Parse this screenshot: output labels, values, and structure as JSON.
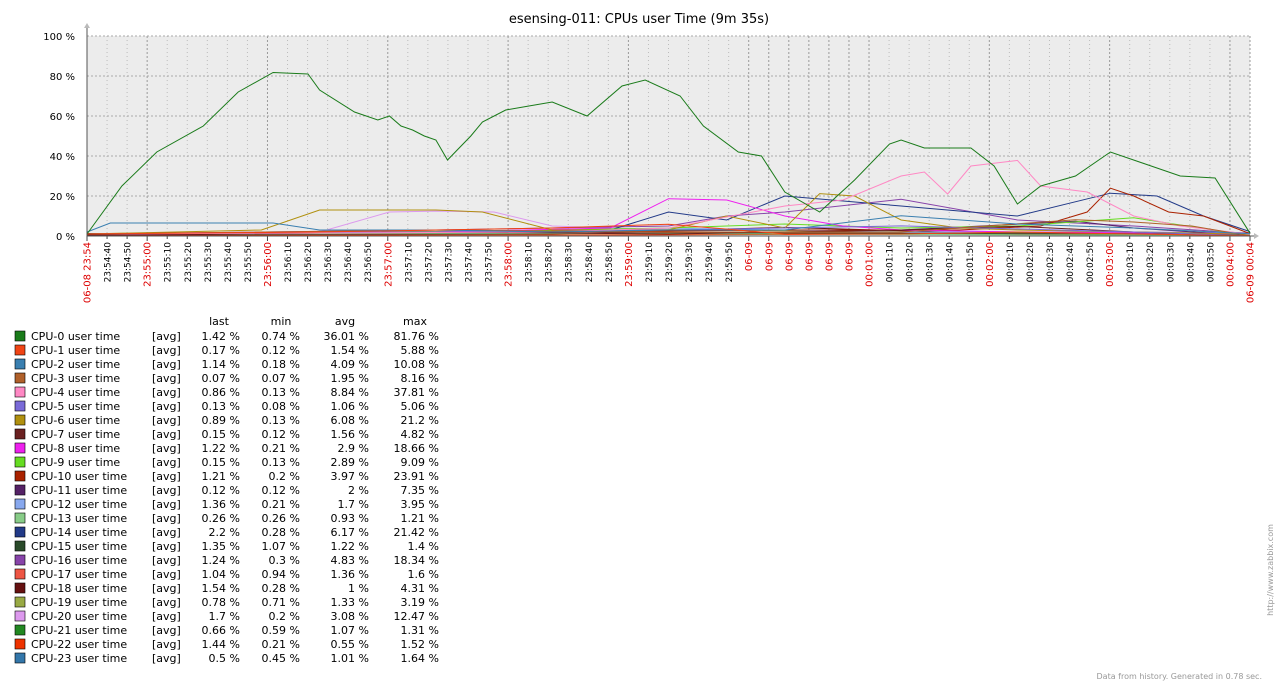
{
  "chart_data": {
    "type": "line",
    "title": "esensing-011: CPUs user Time (9m 35s)",
    "y_unit": "%",
    "ylim": [
      0,
      100
    ],
    "yticks": [
      "0 %",
      "20 %",
      "40 %",
      "60 %",
      "80 %",
      "100 %"
    ],
    "x_start": "06-08 23:54",
    "x_end": "06-09 00:04",
    "xticks": [
      "23:54:40",
      "23:54:50",
      "23:55:00",
      "23:55:10",
      "23:55:20",
      "23:55:30",
      "23:55:40",
      "23:55:50",
      "23:56:00",
      "23:56:10",
      "23:56:20",
      "23:56:30",
      "23:56:40",
      "23:56:50",
      "23:57:00",
      "23:57:10",
      "23:57:20",
      "23:57:30",
      "23:57:40",
      "23:57:50",
      "23:58:00",
      "23:58:10",
      "23:58:20",
      "23:58:30",
      "23:58:40",
      "23:58:50",
      "23:59:00",
      "23:59:10",
      "23:59:20",
      "23:59:30",
      "23:59:40",
      "23:59:50",
      "06-09",
      "06-09",
      "06-09",
      "06-09",
      "06-09",
      "06-09",
      "00:01:00",
      "00:01:10",
      "00:01:20",
      "00:01:30",
      "00:01:40",
      "00:01:50",
      "00:02:00",
      "00:02:10",
      "00:02:20",
      "00:02:30",
      "00:02:40",
      "00:02:50",
      "00:03:00",
      "00:03:10",
      "00:03:20",
      "00:03:30",
      "00:03:40",
      "00:03:50",
      "00:04:00"
    ],
    "major_xticks": [
      "23:55:00",
      "23:56:00",
      "23:57:00",
      "23:58:00",
      "23:59:00",
      "06-09",
      "00:01:00",
      "00:02:00",
      "00:03:00",
      "00:04:00"
    ],
    "grid": true,
    "legend_headers": [
      "last",
      "min",
      "avg",
      "max"
    ],
    "series": [
      {
        "name": "CPU-0 user time",
        "func": "[avg]",
        "color": "#1a7b1a",
        "last": "1.42 %",
        "min": "0.74 %",
        "avg": "36.01 %",
        "max": "81.76 %",
        "x": [
          0,
          0.03,
          0.06,
          0.1,
          0.13,
          0.16,
          0.19,
          0.2,
          0.23,
          0.25,
          0.26,
          0.27,
          0.28,
          0.29,
          0.3,
          0.31,
          0.33,
          0.34,
          0.36,
          0.38,
          0.4,
          0.43,
          0.46,
          0.48,
          0.51,
          0.53,
          0.56,
          0.58,
          0.6,
          0.63,
          0.66,
          0.69,
          0.7,
          0.72,
          0.74,
          0.76,
          0.78,
          0.8,
          0.82,
          0.85,
          0.88,
          0.91,
          0.94,
          0.97,
          1.0
        ],
        "y": [
          1,
          25,
          42,
          55,
          72,
          81.76,
          81,
          73,
          62,
          58,
          60,
          55,
          53,
          50,
          48,
          38,
          50,
          57,
          63,
          65,
          67,
          60,
          75,
          78,
          70,
          55,
          42,
          40,
          22,
          12,
          28,
          46,
          48,
          44,
          44,
          44,
          35,
          16,
          25,
          30,
          42,
          36,
          30,
          29,
          1.42
        ]
      },
      {
        "name": "CPU-1 user time",
        "func": "[avg]",
        "color": "#f04414",
        "last": "0.17 %",
        "min": "0.12 %",
        "avg": "1.54 %",
        "max": "5.88 %",
        "x": [
          0,
          0.2,
          0.3,
          0.4,
          0.5,
          0.6,
          0.7,
          0.8,
          0.9,
          1.0
        ],
        "y": [
          1,
          2,
          3,
          4,
          5.88,
          1,
          1,
          2,
          1,
          0.17
        ]
      },
      {
        "name": "CPU-2 user time",
        "func": "[avg]",
        "color": "#3a7fb0",
        "last": "1.14 %",
        "min": "0.18 %",
        "avg": "4.09 %",
        "max": "10.08 %",
        "x": [
          0,
          0.02,
          0.1,
          0.16,
          0.2,
          0.3,
          0.4,
          0.5,
          0.6,
          0.7,
          0.8,
          0.9,
          1.0
        ],
        "y": [
          2,
          6.5,
          6.5,
          6.5,
          3,
          3,
          2,
          3,
          3,
          10.08,
          6,
          4,
          1.14
        ]
      },
      {
        "name": "CPU-3 user time",
        "func": "[avg]",
        "color": "#b0602a",
        "last": "0.07 %",
        "min": "0.07 %",
        "avg": "1.95 %",
        "max": "8.16 %",
        "x": [
          0,
          0.3,
          0.5,
          0.7,
          0.85,
          0.9,
          0.95,
          1.0
        ],
        "y": [
          1,
          3,
          2,
          2,
          8.16,
          7,
          5,
          0.07
        ]
      },
      {
        "name": "CPU-4 user time",
        "func": "[avg]",
        "color": "#ff88c4",
        "last": "0.86 %",
        "min": "0.13 %",
        "avg": "8.84 %",
        "max": "37.81 %",
        "x": [
          0,
          0.4,
          0.5,
          0.6,
          0.65,
          0.7,
          0.72,
          0.74,
          0.76,
          0.8,
          0.82,
          0.86,
          0.9,
          0.94,
          1.0
        ],
        "y": [
          1,
          2,
          4,
          15,
          18,
          30,
          32,
          21,
          35,
          37.81,
          25,
          22,
          10,
          5,
          0.86
        ]
      },
      {
        "name": "CPU-5 user time",
        "func": "[avg]",
        "color": "#7a6ad8",
        "last": "0.13 %",
        "min": "0.08 %",
        "avg": "1.06 %",
        "max": "5.06 %",
        "x": [
          0,
          0.3,
          0.5,
          0.7,
          0.9,
          1.0
        ],
        "y": [
          1,
          2,
          3,
          5.06,
          2,
          0.13
        ]
      },
      {
        "name": "CPU-6 user time",
        "func": "[avg]",
        "color": "#b0900e",
        "last": "0.89 %",
        "min": "0.13 %",
        "avg": "6.08 %",
        "max": "21.2 %",
        "x": [
          0,
          0.15,
          0.2,
          0.24,
          0.3,
          0.34,
          0.4,
          0.5,
          0.55,
          0.6,
          0.63,
          0.66,
          0.7,
          0.75,
          0.8,
          0.9,
          1.0
        ],
        "y": [
          1,
          3,
          13,
          13,
          13,
          12,
          3,
          3,
          10,
          4,
          21.2,
          20,
          8,
          4,
          3,
          2,
          0.89
        ]
      },
      {
        "name": "CPU-7 user time",
        "func": "[avg]",
        "color": "#6a2020",
        "last": "0.15 %",
        "min": "0.12 %",
        "avg": "1.56 %",
        "max": "4.82 %",
        "x": [
          0,
          0.3,
          0.5,
          0.7,
          0.8,
          0.9,
          1.0
        ],
        "y": [
          0.5,
          2,
          1,
          3,
          4.82,
          2,
          0.15
        ]
      },
      {
        "name": "CPU-8 user time",
        "func": "[avg]",
        "color": "#ee20ee",
        "last": "1.22 %",
        "min": "0.21 %",
        "avg": "2.9 %",
        "max": "18.66 %",
        "x": [
          0,
          0.3,
          0.45,
          0.5,
          0.55,
          0.6,
          0.65,
          0.7,
          0.8,
          1.0
        ],
        "y": [
          1,
          2,
          4,
          18.66,
          18,
          10,
          5,
          3,
          2,
          1.22
        ]
      },
      {
        "name": "CPU-9 user time",
        "func": "[avg]",
        "color": "#66dd22",
        "last": "0.15 %",
        "min": "0.13 %",
        "avg": "2.89 %",
        "max": "9.09 %",
        "x": [
          0,
          0.3,
          0.5,
          0.6,
          0.7,
          0.8,
          0.9,
          1.0
        ],
        "y": [
          1,
          2,
          4,
          6,
          4,
          5,
          9.09,
          0.15
        ]
      },
      {
        "name": "CPU-10 user time",
        "func": "[avg]",
        "color": "#aa2200",
        "last": "1.21 %",
        "min": "0.2 %",
        "avg": "3.97 %",
        "max": "23.91 %",
        "x": [
          0,
          0.4,
          0.6,
          0.75,
          0.82,
          0.86,
          0.88,
          0.9,
          0.93,
          0.96,
          1.0
        ],
        "y": [
          1,
          2,
          3,
          3,
          5,
          12,
          23.91,
          20,
          12,
          10,
          1.21
        ]
      },
      {
        "name": "CPU-11 user time",
        "func": "[avg]",
        "color": "#552266",
        "last": "0.12 %",
        "min": "0.12 %",
        "avg": "2 %",
        "max": "7.35 %",
        "x": [
          0,
          0.3,
          0.5,
          0.7,
          0.85,
          0.9,
          1.0
        ],
        "y": [
          1,
          2,
          3,
          3,
          7.35,
          4,
          0.12
        ]
      },
      {
        "name": "CPU-12 user time",
        "func": "[avg]",
        "color": "#88a8ee",
        "last": "1.36 %",
        "min": "0.21 %",
        "avg": "1.7 %",
        "max": "3.95 %",
        "x": [
          0,
          0.3,
          0.5,
          0.7,
          0.9,
          1.0
        ],
        "y": [
          1,
          2,
          3.95,
          2,
          2,
          1.36
        ]
      },
      {
        "name": "CPU-13 user time",
        "func": "[avg]",
        "color": "#88cc88",
        "last": "0.26 %",
        "min": "0.26 %",
        "avg": "0.93 %",
        "max": "1.21 %",
        "x": [
          0,
          0.5,
          1.0
        ],
        "y": [
          1,
          1.21,
          0.26
        ]
      },
      {
        "name": "CPU-14 user time",
        "func": "[avg]",
        "color": "#223a88",
        "last": "2.2 %",
        "min": "0.28 %",
        "avg": "6.17 %",
        "max": "21.42 %",
        "x": [
          0,
          0.3,
          0.45,
          0.5,
          0.55,
          0.6,
          0.7,
          0.8,
          0.88,
          0.92,
          0.96,
          1.0
        ],
        "y": [
          1,
          2,
          3,
          12,
          8,
          20,
          15,
          10,
          21.42,
          20,
          10,
          2.2
        ]
      },
      {
        "name": "CPU-15 user time",
        "func": "[avg]",
        "color": "#2a4a2a",
        "last": "1.35 %",
        "min": "1.07 %",
        "avg": "1.22 %",
        "max": "1.4 %",
        "x": [
          0,
          0.5,
          1.0
        ],
        "y": [
          1.2,
          1.4,
          1.35
        ]
      },
      {
        "name": "CPU-16 user time",
        "func": "[avg]",
        "color": "#8844aa",
        "last": "1.24 %",
        "min": "0.3 %",
        "avg": "4.83 %",
        "max": "18.34 %",
        "x": [
          0,
          0.3,
          0.5,
          0.55,
          0.6,
          0.7,
          0.8,
          0.9,
          1.0
        ],
        "y": [
          1,
          3,
          5,
          10,
          12,
          18.34,
          8,
          5,
          1.24
        ]
      },
      {
        "name": "CPU-17 user time",
        "func": "[avg]",
        "color": "#ee5544",
        "last": "1.04 %",
        "min": "0.94 %",
        "avg": "1.36 %",
        "max": "1.6 %",
        "x": [
          0,
          0.5,
          1.0
        ],
        "y": [
          1.2,
          1.6,
          1.04
        ]
      },
      {
        "name": "CPU-18 user time",
        "func": "[avg]",
        "color": "#661111",
        "last": "1.54 %",
        "min": "0.28 %",
        "avg": "1 %",
        "max": "4.31 %",
        "x": [
          0,
          0.4,
          0.6,
          0.8,
          1.0
        ],
        "y": [
          0.5,
          1,
          4.31,
          1,
          1.54
        ]
      },
      {
        "name": "CPU-19 user time",
        "func": "[avg]",
        "color": "#99aa44",
        "last": "0.78 %",
        "min": "0.71 %",
        "avg": "1.33 %",
        "max": "3.19 %",
        "x": [
          0,
          0.5,
          0.8,
          1.0
        ],
        "y": [
          1,
          3.19,
          1.5,
          0.78
        ]
      },
      {
        "name": "CPU-20 user time",
        "func": "[avg]",
        "color": "#dd99ee",
        "last": "1.7 %",
        "min": "0.2 %",
        "avg": "3.08 %",
        "max": "12.47 %",
        "x": [
          0,
          0.2,
          0.26,
          0.3,
          0.35,
          0.4,
          0.5,
          0.7,
          0.8,
          0.9,
          1.0
        ],
        "y": [
          1,
          2,
          12,
          12.47,
          12,
          5,
          3,
          3,
          2,
          2,
          1.7
        ]
      },
      {
        "name": "CPU-21 user time",
        "func": "[avg]",
        "color": "#228822",
        "last": "0.66 %",
        "min": "0.59 %",
        "avg": "1.07 %",
        "max": "1.31 %",
        "x": [
          0,
          0.5,
          1.0
        ],
        "y": [
          1,
          1.31,
          0.66
        ]
      },
      {
        "name": "CPU-22 user time",
        "func": "[avg]",
        "color": "#ee3300",
        "last": "1.44 %",
        "min": "0.21 %",
        "avg": "0.55 %",
        "max": "1.52 %",
        "x": [
          0,
          0.5,
          1.0
        ],
        "y": [
          0.4,
          0.6,
          1.44
        ]
      },
      {
        "name": "CPU-23 user time",
        "func": "[avg]",
        "color": "#3377aa",
        "last": "0.5 %",
        "min": "0.45 %",
        "avg": "1.01 %",
        "max": "1.64 %",
        "x": [
          0,
          0.5,
          1.0
        ],
        "y": [
          1,
          1.64,
          0.5
        ]
      }
    ]
  },
  "footer": {
    "watermark": "http://www.zabbix.com",
    "generated": "Data from history. Generated in 0.78 sec."
  }
}
